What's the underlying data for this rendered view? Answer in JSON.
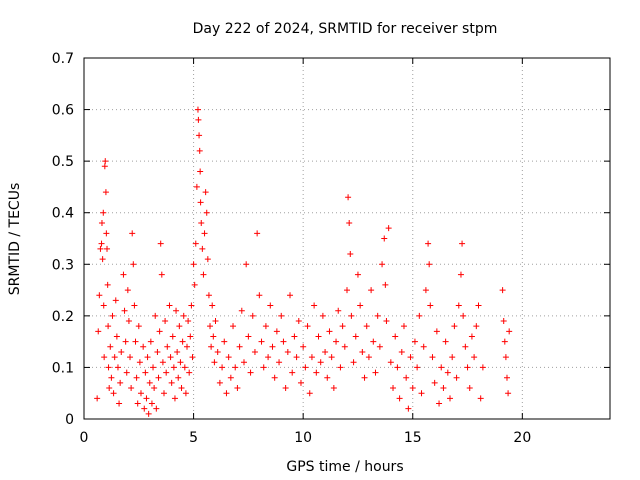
{
  "chart_data": {
    "type": "scatter",
    "title": "Day 222 of 2024, SRMTID for receiver stpm",
    "xlabel": "GPS time / hours",
    "ylabel": "SRMTID / TECUs",
    "xlim": [
      0,
      24
    ],
    "ylim": [
      0,
      0.7
    ],
    "x_ticks": [
      0,
      5,
      10,
      15,
      20
    ],
    "x_tick_labels": [
      "0",
      "5",
      "10",
      "15",
      "20"
    ],
    "y_ticks": [
      0,
      0.1,
      0.2,
      0.3,
      0.4,
      0.5,
      0.6,
      0.7
    ],
    "y_tick_labels": [
      "0",
      "0.1",
      "0.2",
      "0.3",
      "0.4",
      "0.5",
      "0.6",
      "0.7"
    ],
    "grid": true,
    "marker": "plus",
    "color": "#ff0000",
    "series": [
      {
        "name": "SRMTID",
        "points": [
          [
            0.6,
            0.04
          ],
          [
            0.65,
            0.17
          ],
          [
            0.7,
            0.24
          ],
          [
            0.75,
            0.33
          ],
          [
            0.8,
            0.34
          ],
          [
            0.82,
            0.38
          ],
          [
            0.85,
            0.31
          ],
          [
            0.88,
            0.4
          ],
          [
            0.9,
            0.22
          ],
          [
            0.92,
            0.12
          ],
          [
            0.95,
            0.49
          ],
          [
            0.97,
            0.5
          ],
          [
            1.0,
            0.44
          ],
          [
            1.02,
            0.36
          ],
          [
            1.05,
            0.33
          ],
          [
            1.08,
            0.26
          ],
          [
            1.1,
            0.18
          ],
          [
            1.12,
            0.1
          ],
          [
            1.15,
            0.06
          ],
          [
            1.2,
            0.14
          ],
          [
            1.25,
            0.08
          ],
          [
            1.3,
            0.2
          ],
          [
            1.35,
            0.05
          ],
          [
            1.4,
            0.12
          ],
          [
            1.45,
            0.23
          ],
          [
            1.5,
            0.16
          ],
          [
            1.55,
            0.1
          ],
          [
            1.6,
            0.03
          ],
          [
            1.65,
            0.07
          ],
          [
            1.7,
            0.13
          ],
          [
            1.8,
            0.28
          ],
          [
            1.85,
            0.21
          ],
          [
            1.9,
            0.15
          ],
          [
            1.95,
            0.09
          ],
          [
            2.0,
            0.25
          ],
          [
            2.05,
            0.19
          ],
          [
            2.1,
            0.12
          ],
          [
            2.15,
            0.06
          ],
          [
            2.2,
            0.36
          ],
          [
            2.25,
            0.3
          ],
          [
            2.3,
            0.22
          ],
          [
            2.35,
            0.15
          ],
          [
            2.4,
            0.08
          ],
          [
            2.45,
            0.03
          ],
          [
            2.5,
            0.18
          ],
          [
            2.55,
            0.11
          ],
          [
            2.6,
            0.05
          ],
          [
            2.7,
            0.14
          ],
          [
            2.75,
            0.02
          ],
          [
            2.8,
            0.09
          ],
          [
            2.85,
            0.04
          ],
          [
            2.9,
            0.12
          ],
          [
            2.95,
            0.01
          ],
          [
            3.0,
            0.07
          ],
          [
            3.05,
            0.15
          ],
          [
            3.1,
            0.03
          ],
          [
            3.15,
            0.1
          ],
          [
            3.2,
            0.06
          ],
          [
            3.25,
            0.2
          ],
          [
            3.3,
            0.02
          ],
          [
            3.35,
            0.13
          ],
          [
            3.4,
            0.08
          ],
          [
            3.45,
            0.17
          ],
          [
            3.5,
            0.34
          ],
          [
            3.55,
            0.28
          ],
          [
            3.6,
            0.11
          ],
          [
            3.65,
            0.05
          ],
          [
            3.7,
            0.19
          ],
          [
            3.75,
            0.09
          ],
          [
            3.8,
            0.14
          ],
          [
            3.9,
            0.22
          ],
          [
            3.95,
            0.12
          ],
          [
            4.0,
            0.07
          ],
          [
            4.05,
            0.16
          ],
          [
            4.1,
            0.1
          ],
          [
            4.15,
            0.04
          ],
          [
            4.2,
            0.21
          ],
          [
            4.25,
            0.13
          ],
          [
            4.3,
            0.08
          ],
          [
            4.35,
            0.18
          ],
          [
            4.4,
            0.11
          ],
          [
            4.45,
            0.06
          ],
          [
            4.5,
            0.15
          ],
          [
            4.55,
            0.2
          ],
          [
            4.6,
            0.1
          ],
          [
            4.65,
            0.05
          ],
          [
            4.7,
            0.14
          ],
          [
            4.75,
            0.19
          ],
          [
            4.8,
            0.09
          ],
          [
            4.85,
            0.16
          ],
          [
            4.9,
            0.22
          ],
          [
            4.95,
            0.12
          ],
          [
            5.0,
            0.3
          ],
          [
            5.05,
            0.26
          ],
          [
            5.1,
            0.34
          ],
          [
            5.15,
            0.45
          ],
          [
            5.2,
            0.6
          ],
          [
            5.22,
            0.58
          ],
          [
            5.25,
            0.55
          ],
          [
            5.28,
            0.52
          ],
          [
            5.3,
            0.48
          ],
          [
            5.32,
            0.42
          ],
          [
            5.35,
            0.38
          ],
          [
            5.4,
            0.33
          ],
          [
            5.45,
            0.28
          ],
          [
            5.5,
            0.36
          ],
          [
            5.55,
            0.44
          ],
          [
            5.6,
            0.4
          ],
          [
            5.65,
            0.31
          ],
          [
            5.7,
            0.24
          ],
          [
            5.75,
            0.18
          ],
          [
            5.8,
            0.14
          ],
          [
            5.85,
            0.22
          ],
          [
            5.9,
            0.16
          ],
          [
            5.95,
            0.11
          ],
          [
            6.0,
            0.19
          ],
          [
            6.1,
            0.13
          ],
          [
            6.2,
            0.07
          ],
          [
            6.3,
            0.1
          ],
          [
            6.4,
            0.15
          ],
          [
            6.5,
            0.05
          ],
          [
            6.6,
            0.12
          ],
          [
            6.7,
            0.08
          ],
          [
            6.8,
            0.18
          ],
          [
            6.9,
            0.1
          ],
          [
            7.0,
            0.06
          ],
          [
            7.1,
            0.14
          ],
          [
            7.2,
            0.21
          ],
          [
            7.3,
            0.11
          ],
          [
            7.4,
            0.3
          ],
          [
            7.5,
            0.16
          ],
          [
            7.6,
            0.09
          ],
          [
            7.7,
            0.2
          ],
          [
            7.8,
            0.13
          ],
          [
            7.9,
            0.36
          ],
          [
            8.0,
            0.24
          ],
          [
            8.1,
            0.15
          ],
          [
            8.2,
            0.1
          ],
          [
            8.3,
            0.18
          ],
          [
            8.4,
            0.12
          ],
          [
            8.5,
            0.22
          ],
          [
            8.6,
            0.14
          ],
          [
            8.7,
            0.08
          ],
          [
            8.8,
            0.17
          ],
          [
            8.9,
            0.11
          ],
          [
            9.0,
            0.2
          ],
          [
            9.1,
            0.15
          ],
          [
            9.2,
            0.06
          ],
          [
            9.3,
            0.13
          ],
          [
            9.4,
            0.24
          ],
          [
            9.5,
            0.09
          ],
          [
            9.6,
            0.16
          ],
          [
            9.7,
            0.12
          ],
          [
            9.8,
            0.19
          ],
          [
            9.9,
            0.07
          ],
          [
            10.0,
            0.14
          ],
          [
            10.1,
            0.1
          ],
          [
            10.2,
            0.18
          ],
          [
            10.3,
            0.05
          ],
          [
            10.4,
            0.12
          ],
          [
            10.5,
            0.22
          ],
          [
            10.6,
            0.09
          ],
          [
            10.7,
            0.16
          ],
          [
            10.8,
            0.11
          ],
          [
            10.9,
            0.2
          ],
          [
            11.0,
            0.13
          ],
          [
            11.1,
            0.08
          ],
          [
            11.2,
            0.17
          ],
          [
            11.3,
            0.12
          ],
          [
            11.4,
            0.06
          ],
          [
            11.5,
            0.15
          ],
          [
            11.6,
            0.21
          ],
          [
            11.7,
            0.1
          ],
          [
            11.8,
            0.18
          ],
          [
            11.9,
            0.14
          ],
          [
            12.0,
            0.25
          ],
          [
            12.05,
            0.43
          ],
          [
            12.1,
            0.38
          ],
          [
            12.15,
            0.32
          ],
          [
            12.2,
            0.2
          ],
          [
            12.3,
            0.11
          ],
          [
            12.4,
            0.16
          ],
          [
            12.5,
            0.28
          ],
          [
            12.6,
            0.22
          ],
          [
            12.7,
            0.13
          ],
          [
            12.8,
            0.08
          ],
          [
            12.9,
            0.18
          ],
          [
            13.0,
            0.12
          ],
          [
            13.1,
            0.25
          ],
          [
            13.2,
            0.15
          ],
          [
            13.3,
            0.09
          ],
          [
            13.4,
            0.2
          ],
          [
            13.5,
            0.14
          ],
          [
            13.6,
            0.3
          ],
          [
            13.7,
            0.35
          ],
          [
            13.75,
            0.26
          ],
          [
            13.8,
            0.19
          ],
          [
            13.9,
            0.37
          ],
          [
            14.0,
            0.11
          ],
          [
            14.1,
            0.06
          ],
          [
            14.2,
            0.16
          ],
          [
            14.3,
            0.1
          ],
          [
            14.4,
            0.04
          ],
          [
            14.5,
            0.13
          ],
          [
            14.6,
            0.18
          ],
          [
            14.7,
            0.08
          ],
          [
            14.8,
            0.02
          ],
          [
            14.9,
            0.12
          ],
          [
            15.0,
            0.06
          ],
          [
            15.1,
            0.15
          ],
          [
            15.2,
            0.1
          ],
          [
            15.3,
            0.2
          ],
          [
            15.4,
            0.05
          ],
          [
            15.5,
            0.14
          ],
          [
            15.6,
            0.25
          ],
          [
            15.7,
            0.34
          ],
          [
            15.75,
            0.3
          ],
          [
            15.8,
            0.22
          ],
          [
            15.9,
            0.12
          ],
          [
            16.0,
            0.07
          ],
          [
            16.1,
            0.17
          ],
          [
            16.2,
            0.03
          ],
          [
            16.3,
            0.1
          ],
          [
            16.4,
            0.06
          ],
          [
            16.5,
            0.15
          ],
          [
            16.6,
            0.09
          ],
          [
            16.7,
            0.04
          ],
          [
            16.8,
            0.12
          ],
          [
            16.9,
            0.18
          ],
          [
            17.0,
            0.08
          ],
          [
            17.1,
            0.22
          ],
          [
            17.2,
            0.28
          ],
          [
            17.25,
            0.34
          ],
          [
            17.3,
            0.2
          ],
          [
            17.4,
            0.14
          ],
          [
            17.5,
            0.1
          ],
          [
            17.6,
            0.06
          ],
          [
            17.7,
            0.16
          ],
          [
            17.8,
            0.12
          ],
          [
            17.9,
            0.18
          ],
          [
            18.0,
            0.22
          ],
          [
            18.1,
            0.04
          ],
          [
            18.2,
            0.1
          ],
          [
            19.1,
            0.25
          ],
          [
            19.15,
            0.19
          ],
          [
            19.2,
            0.15
          ],
          [
            19.25,
            0.12
          ],
          [
            19.3,
            0.08
          ],
          [
            19.35,
            0.05
          ],
          [
            19.4,
            0.17
          ]
        ]
      }
    ]
  }
}
